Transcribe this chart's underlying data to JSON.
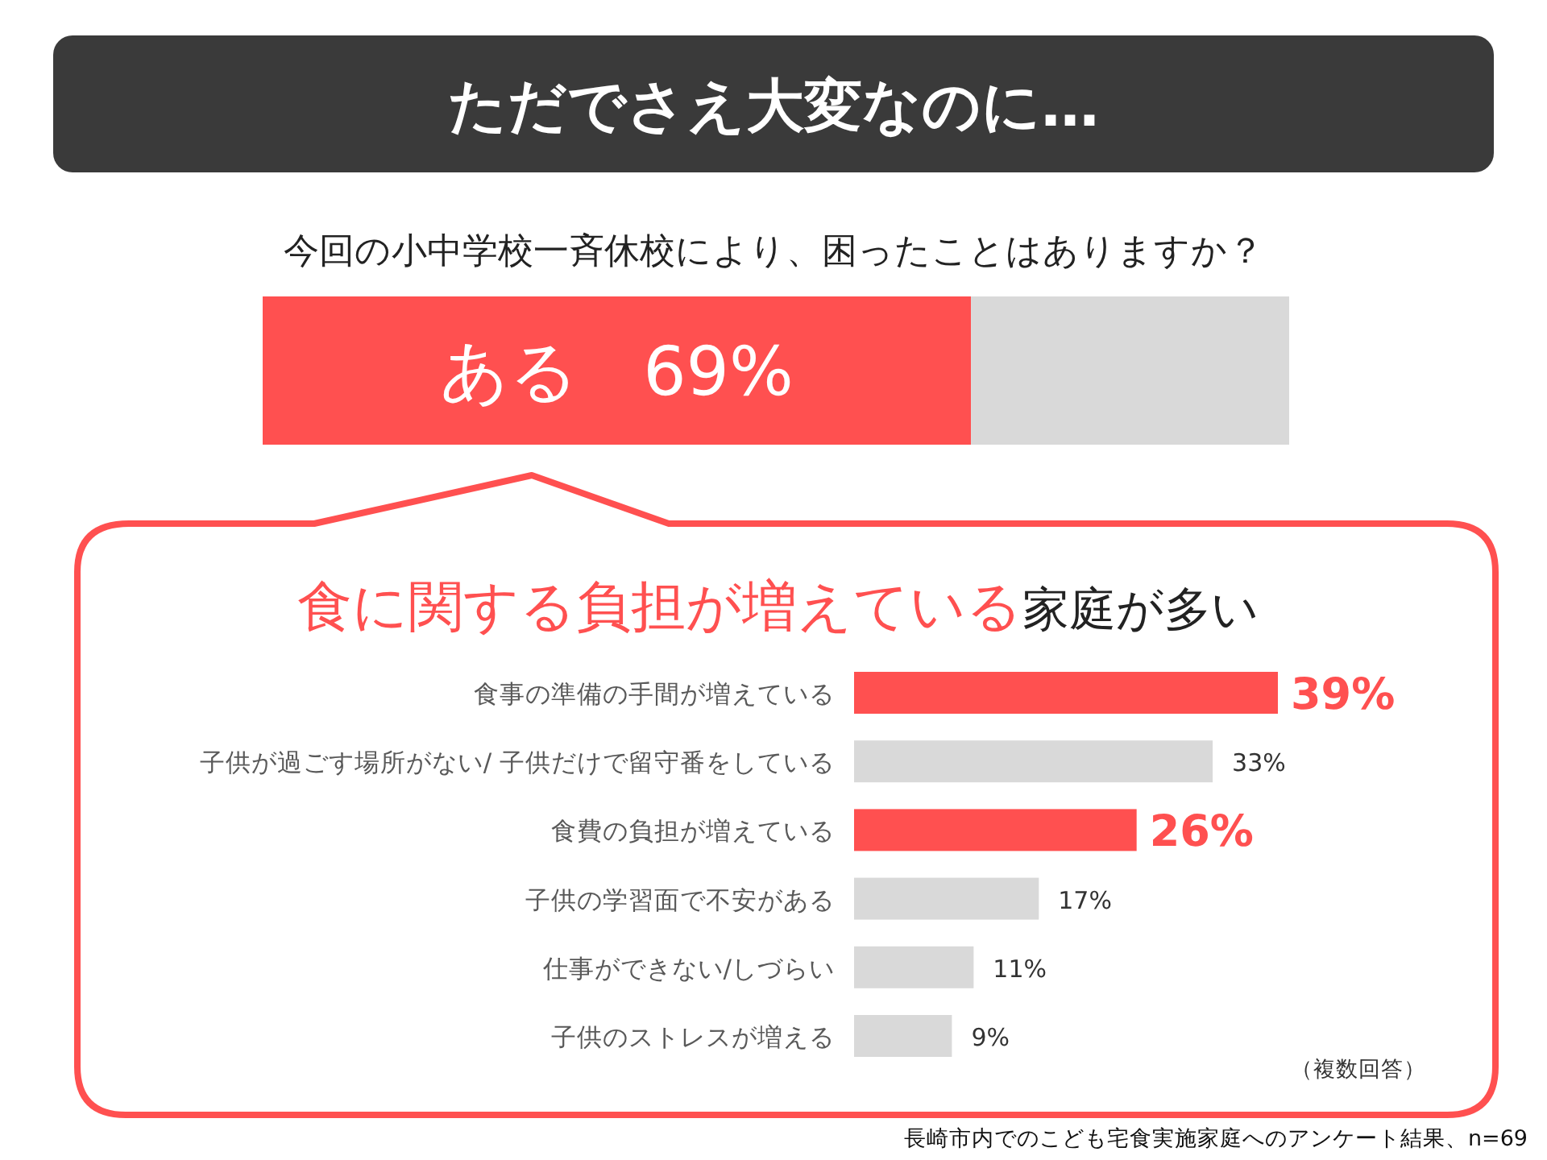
{
  "chart_data": [
    {
      "type": "bar",
      "orientation": "horizontal",
      "stacked": true,
      "title": "ただでさえ大変なのに…",
      "subtitle": "今回の小中学校一斉休校により、困ったことはありますか？",
      "categories": [
        null
      ],
      "series": [
        {
          "name": "ある",
          "color": "#ff5050",
          "values": [
            69
          ],
          "value_labels": [
            "69%"
          ]
        },
        {
          "color": "#d9d9d9",
          "values": [
            31
          ]
        }
      ]
    },
    {
      "type": "bar",
      "orientation": "horizontal",
      "title": "食に関する負担が増えている",
      "subtitle": "家庭が多い",
      "categories": [
        "食事の準備の手間が増えている",
        "子供が過ごす場所がない/ 子供だけで留守番をしている",
        "食費の負担が増えている",
        "子供の学習面で不安がある",
        "仕事ができない/しづらい",
        "子供のストレスが増える"
      ],
      "values": [
        39,
        33,
        26,
        17,
        11,
        9
      ],
      "colors": [
        "#ff5050",
        "#d9d9d9",
        "#ff5050",
        "#d9d9d9",
        "#d9d9d9",
        "#d9d9d9"
      ],
      "value_labels": [
        "39%",
        "33%",
        "26%",
        "17%",
        "11%",
        "9%"
      ],
      "annotations": [
        "（複数回答）",
        "長崎市内でのこども宅食実施家庭へのアンケート結果、n=69"
      ]
    }
  ]
}
